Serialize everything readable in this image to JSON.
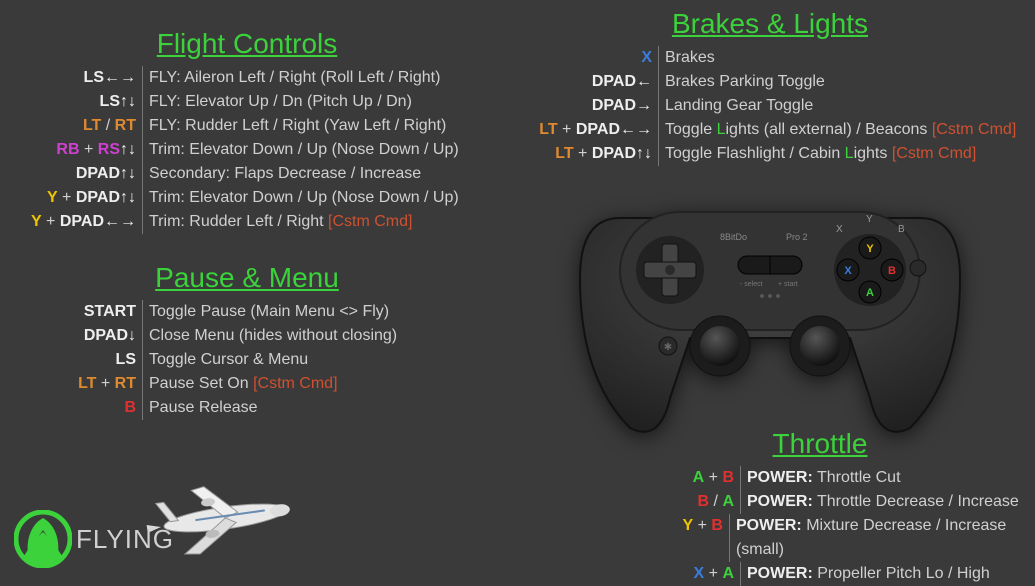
{
  "colors": {
    "background": "#3a3a3a",
    "title_green": "#3bd23b",
    "text": "#d0d0d0",
    "white": "#eeeeee",
    "red": "#e03030",
    "yellow": "#f0c400",
    "blue": "#3a7de0",
    "orange": "#e08a30",
    "magenta": "#d040d0",
    "cstm": "#d05030",
    "divider": "#777777"
  },
  "typography": {
    "title_fontsize": 28,
    "row_fontsize": 16,
    "row_lineheight": 24,
    "badge_fontsize": 26
  },
  "badge": {
    "label": "FLYING"
  },
  "flight": {
    "title": "Flight Controls",
    "rows": [
      {
        "k": [
          {
            "t": "LS",
            "c": "white"
          },
          {
            "t": "←→",
            "c": "white"
          }
        ],
        "d": "FLY: Aileron Left / Right (Roll Left / Right)"
      },
      {
        "k": [
          {
            "t": "LS",
            "c": "white"
          },
          {
            "t": "↑↓",
            "c": "white"
          }
        ],
        "d": "FLY: Elevator Up / Dn (Pitch Up / Dn)"
      },
      {
        "k": [
          {
            "t": "LT",
            "c": "orange"
          },
          {
            "t": " / ",
            "c": "slash"
          },
          {
            "t": "RT",
            "c": "orange"
          }
        ],
        "d": "FLY: Rudder Left / Right (Yaw Left / Right)"
      },
      {
        "k": [
          {
            "t": "RB",
            "c": "magenta"
          },
          {
            "t": " + ",
            "c": "plus"
          },
          {
            "t": "RS",
            "c": "magenta"
          },
          {
            "t": "↑↓",
            "c": "white"
          }
        ],
        "d": "Trim: Elevator Down / Up (Nose Down / Up)"
      },
      {
        "k": [
          {
            "t": "DPAD",
            "c": "white"
          },
          {
            "t": "↑↓",
            "c": "white"
          }
        ],
        "d": "Secondary: Flaps Decrease / Increase"
      },
      {
        "k": [
          {
            "t": "Y",
            "c": "yellow"
          },
          {
            "t": " + ",
            "c": "plus"
          },
          {
            "t": "DPAD",
            "c": "white"
          },
          {
            "t": "↑↓",
            "c": "white"
          }
        ],
        "d": "Trim: Elevator Down / Up (Nose Down / Up)"
      },
      {
        "k": [
          {
            "t": "Y",
            "c": "yellow"
          },
          {
            "t": " + ",
            "c": "plus"
          },
          {
            "t": "DPAD",
            "c": "white"
          },
          {
            "t": "←→",
            "c": "white"
          }
        ],
        "d": "Trim: Rudder Left / Right ",
        "cstm": "[Cstm Cmd]"
      }
    ]
  },
  "pause": {
    "title": "Pause & Menu",
    "rows": [
      {
        "k": [
          {
            "t": "START",
            "c": "white"
          }
        ],
        "d": "Toggle Pause (Main Menu <> Fly)"
      },
      {
        "k": [
          {
            "t": "DPAD",
            "c": "white"
          },
          {
            "t": "↓",
            "c": "white"
          }
        ],
        "d": "Close Menu (hides without closing)"
      },
      {
        "k": [
          {
            "t": "LS",
            "c": "white"
          }
        ],
        "d": "Toggle Cursor & Menu"
      },
      {
        "k": [
          {
            "t": "LT",
            "c": "orange"
          },
          {
            "t": " + ",
            "c": "plus"
          },
          {
            "t": "RT",
            "c": "orange"
          }
        ],
        "d": "Pause Set On ",
        "cstm": "[Cstm Cmd]"
      },
      {
        "k": [
          {
            "t": "B",
            "c": "red"
          }
        ],
        "d": "Pause Release"
      }
    ]
  },
  "brakes": {
    "title": "Brakes & Lights",
    "rows": [
      {
        "k": [
          {
            "t": "X",
            "c": "blue"
          }
        ],
        "d": "Brakes"
      },
      {
        "k": [
          {
            "t": "DPAD",
            "c": "white"
          },
          {
            "t": "←",
            "c": "white"
          }
        ],
        "d": "Brakes Parking Toggle"
      },
      {
        "k": [
          {
            "t": "DPAD",
            "c": "white"
          },
          {
            "t": "→",
            "c": "white"
          }
        ],
        "d": "Landing Gear Toggle"
      },
      {
        "k": [
          {
            "t": "LT",
            "c": "orange"
          },
          {
            "t": " + ",
            "c": "plus"
          },
          {
            "t": "DPAD",
            "c": "white"
          },
          {
            "t": "←→",
            "c": "white"
          }
        ],
        "dparts": [
          {
            "t": "Toggle "
          },
          {
            "t": "L",
            "c": "green"
          },
          {
            "t": "ights (all external) / Beacons "
          }
        ],
        "cstm": "[Cstm Cmd]"
      },
      {
        "k": [
          {
            "t": "LT",
            "c": "orange"
          },
          {
            "t": " + ",
            "c": "plus"
          },
          {
            "t": "DPAD",
            "c": "white"
          },
          {
            "t": "↑↓",
            "c": "white"
          }
        ],
        "dparts": [
          {
            "t": "Toggle Flashlight / Cabin "
          },
          {
            "t": "L",
            "c": "green"
          },
          {
            "t": "ights "
          }
        ],
        "cstm": "[Cstm Cmd]"
      }
    ]
  },
  "throttle": {
    "title": "Throttle",
    "rows": [
      {
        "k": [
          {
            "t": "A",
            "c": "green"
          },
          {
            "t": " + ",
            "c": "plus"
          },
          {
            "t": "B",
            "c": "red"
          }
        ],
        "d": "POWER: Throttle Cut",
        "bold": "POWER:"
      },
      {
        "k": [
          {
            "t": "B",
            "c": "red"
          },
          {
            "t": " / ",
            "c": "slash"
          },
          {
            "t": "A",
            "c": "green"
          }
        ],
        "d": "POWER: Throttle Decrease / Increase",
        "bold": "POWER:"
      },
      {
        "k": [
          {
            "t": "Y",
            "c": "yellow"
          },
          {
            "t": " + ",
            "c": "plus"
          },
          {
            "t": "B",
            "c": "red"
          }
        ],
        "d": "POWER: Mixture Decrease / Increase (small)",
        "bold": "POWER:"
      },
      {
        "k": [
          {
            "t": "X",
            "c": "blue"
          },
          {
            "t": " + ",
            "c": "plus"
          },
          {
            "t": "A",
            "c": "green"
          }
        ],
        "d": "POWER: Propeller Pitch Lo / High",
        "bold": "POWER:"
      }
    ]
  },
  "controller": {
    "body_color": "#2a2a2a",
    "face_color": "#333333",
    "btn_a": "#3bd23b",
    "btn_b": "#e03030",
    "btn_x": "#3a7de0",
    "btn_y": "#f0c400",
    "brand": "8BitDo",
    "model": "Pro 2",
    "labels": {
      "select": "- select",
      "start": "+ start"
    }
  }
}
